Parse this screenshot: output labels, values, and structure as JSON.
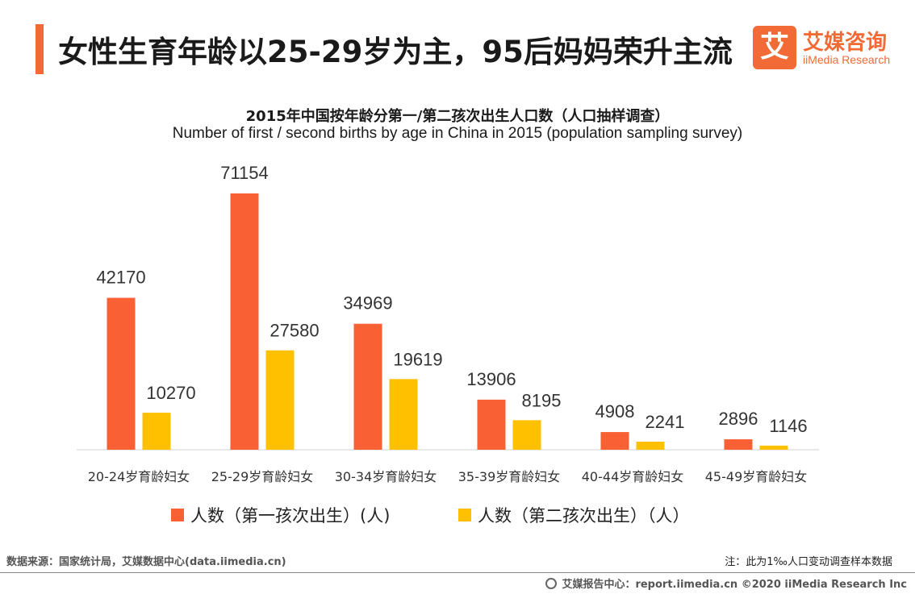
{
  "header": {
    "title": "女性生育年龄以25-29岁为主，95后妈妈荣升主流"
  },
  "logo": {
    "mark": "艾",
    "name_cn": "艾媒咨询",
    "name_en": "iiMedia Research"
  },
  "colors": {
    "accent": "#f26a35",
    "first_child": "#f96033",
    "second_child": "#ffc000"
  },
  "chart_data": {
    "type": "bar",
    "title": "2015年中国按年龄分第一/第二孩次出生人口数（人口抽样调查）",
    "subtitle": "Number of first / second births by age in China in 2015 (population sampling survey)",
    "categories": [
      "20-24岁育龄妇女",
      "25-29岁育龄妇女",
      "30-34岁育龄妇女",
      "35-39岁育龄妇女",
      "40-44岁育龄妇女",
      "45-49岁育龄妇女"
    ],
    "series": [
      {
        "name": "人数（第一孩次出生）(人)",
        "values": [
          42170,
          71154,
          34969,
          13906,
          4908,
          2896
        ],
        "color": "#f96033"
      },
      {
        "name": "人数（第二孩次出生）（人）",
        "values": [
          10270,
          27580,
          19619,
          8195,
          2241,
          1146
        ],
        "color": "#ffc000"
      }
    ],
    "ylim": [
      0,
      71154
    ],
    "grid": false,
    "legend": "bottom"
  },
  "footer": {
    "source": "数据来源：国家统计局，艾媒数据中心(data.iimedia.cn)",
    "note": "注：此为1‰人口变动调查样本数据",
    "copyright": "艾媒报告中心：report.iimedia.cn   ©2020  iiMedia Research  Inc"
  }
}
